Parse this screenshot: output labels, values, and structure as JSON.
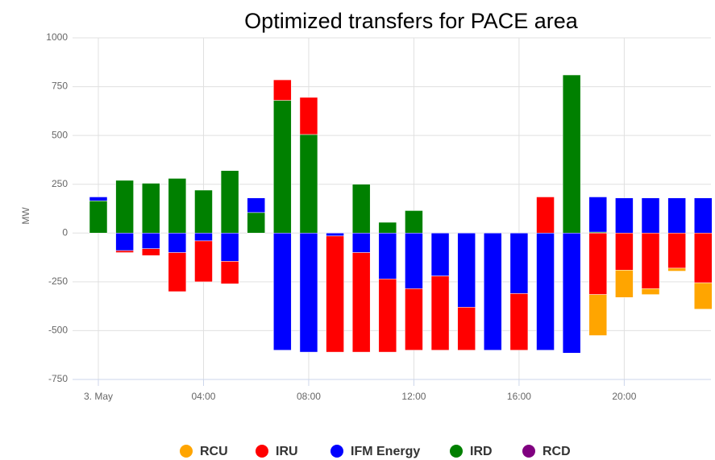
{
  "chart_data": {
    "type": "bar",
    "stacked": true,
    "title": "Optimized transfers for PACE area",
    "ylabel": "MW",
    "categories": [
      "3. May",
      null,
      null,
      null,
      "04:00",
      null,
      null,
      null,
      "08:00",
      null,
      null,
      null,
      "12:00",
      null,
      null,
      null,
      "16:00",
      null,
      null,
      null,
      "20:00",
      null,
      null,
      null
    ],
    "series": [
      {
        "name": "RCU",
        "color": "#ffa500",
        "values": [
          0,
          0,
          0,
          0,
          0,
          0,
          0,
          0,
          0,
          0,
          0,
          0,
          0,
          0,
          0,
          0,
          0,
          0,
          0,
          -210,
          -140,
          -30,
          -15,
          -135
        ]
      },
      {
        "name": "IRU",
        "color": "#ff0000",
        "values": [
          0,
          -10,
          -35,
          -200,
          -210,
          -115,
          0,
          105,
          190,
          -595,
          -510,
          -375,
          -315,
          -380,
          -220,
          0,
          -290,
          185,
          0,
          -315,
          -190,
          -285,
          -180,
          -255
        ]
      },
      {
        "name": "IFM Energy",
        "color": "#0000ff",
        "values": [
          20,
          -90,
          -80,
          -100,
          -40,
          -145,
          75,
          -600,
          -610,
          -15,
          -100,
          -235,
          -285,
          -220,
          -380,
          -600,
          -310,
          -600,
          -615,
          180,
          180,
          180,
          180,
          180
        ]
      },
      {
        "name": "IRD",
        "color": "#008000",
        "values": [
          165,
          270,
          255,
          280,
          220,
          320,
          105,
          680,
          505,
          0,
          250,
          55,
          115,
          0,
          0,
          0,
          0,
          0,
          810,
          5,
          0,
          0,
          0,
          0
        ]
      },
      {
        "name": "RCD",
        "color": "#800080",
        "values": [
          0,
          0,
          0,
          0,
          0,
          0,
          0,
          0,
          0,
          0,
          0,
          0,
          0,
          0,
          0,
          0,
          0,
          0,
          0,
          0,
          0,
          0,
          0,
          0
        ]
      }
    ],
    "ylim": [
      -750,
      1000
    ],
    "yticks": [
      -750,
      -500,
      -250,
      0,
      250,
      500,
      750,
      1000
    ],
    "grid": true,
    "legend": "bottom"
  }
}
